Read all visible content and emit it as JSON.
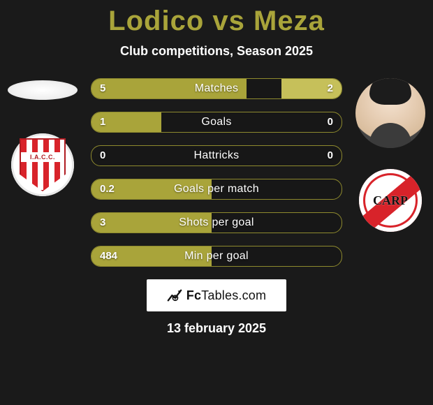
{
  "title": {
    "player_a": "Lodico",
    "vs": "vs",
    "player_b": "Meza",
    "color": "#a9a43a"
  },
  "subtitle": "Club competitions, Season 2025",
  "date": "13 february 2025",
  "colors": {
    "bar_left": "#a9a43a",
    "bar_right": "#c6c05a",
    "row_border": "#8e8a2e",
    "background": "#1a1a1a",
    "text": "#ffffff",
    "iacc_red": "#d8232a",
    "river_red": "#d8232a"
  },
  "left_badge": {
    "name": "iacc",
    "band_text": "I.A.C.C."
  },
  "right_badge": {
    "name": "river-plate",
    "monogram": "CARP"
  },
  "fctables": {
    "label": "FcTables.com",
    "prefix": "Fc",
    "suffix": "Tables.com"
  },
  "metrics": [
    {
      "label": "Matches",
      "left_value": "5",
      "right_value": "2",
      "left_pct": 62,
      "right_pct": 24
    },
    {
      "label": "Goals",
      "left_value": "1",
      "right_value": "0",
      "left_pct": 28,
      "right_pct": 0
    },
    {
      "label": "Hattricks",
      "left_value": "0",
      "right_value": "0",
      "left_pct": 0,
      "right_pct": 0
    },
    {
      "label": "Goals per match",
      "left_value": "0.2",
      "right_value": "",
      "left_pct": 48,
      "right_pct": 0
    },
    {
      "label": "Shots per goal",
      "left_value": "3",
      "right_value": "",
      "left_pct": 48,
      "right_pct": 0
    },
    {
      "label": "Min per goal",
      "left_value": "484",
      "right_value": "",
      "left_pct": 48,
      "right_pct": 0
    }
  ]
}
